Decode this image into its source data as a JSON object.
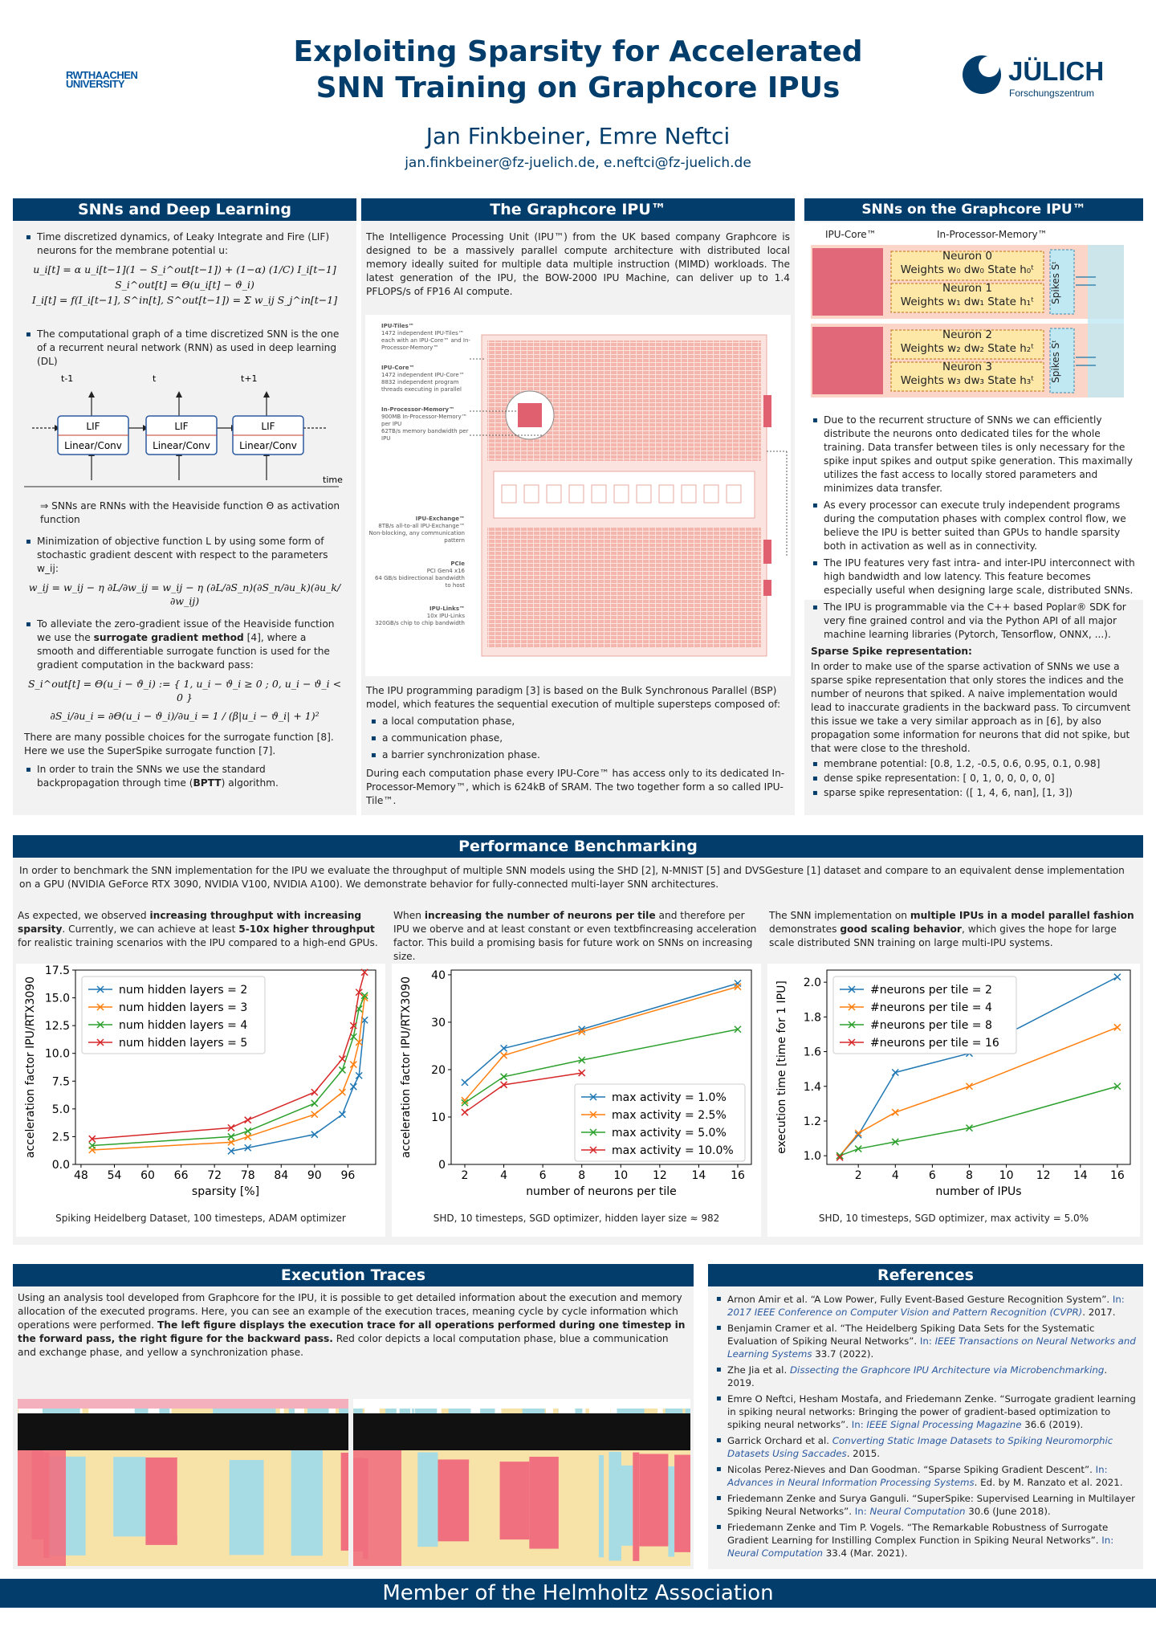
{
  "header": {
    "rwth_logo": "RWTHAACHEN UNIVERSITY",
    "title_line1": "Exploiting Sparsity for Accelerated",
    "title_line2": "SNN Training on Graphcore IPUs",
    "authors": "Jan Finkbeiner, Emre Neftci",
    "emails": "jan.finkbeiner@fz-juelich.de, e.neftci@fz-juelich.de",
    "julich_name": "JÜLICH",
    "julich_sub": "Forschungszentrum"
  },
  "snn_dl": {
    "title": "SNNs and Deep Learning",
    "b1": "Time discretized dynamics, of Leaky Integrate and Fire (LIF) neurons for the membrane potential u:",
    "eq1": "u_i[t] = α u_i[t−1](1 − S_i^out[t−1]) + (1−α) (1/C) I_i[t−1]",
    "eq2": "S_i^out[t] = Θ(u_i[t] − ϑ_i)",
    "eq3": "I_i[t] = f(I_i[t−1], S^in[t], S^out[t−1]) = Σ w_ij S_j^in[t−1]",
    "b2": "The computational graph of a time discretized SNN is the one of a recurrent neural network (RNN) as used in deep learning (DL)",
    "t_labels": [
      "t-1",
      "t",
      "t+1"
    ],
    "lif": "LIF",
    "linear": "Linear/Conv",
    "time": "time",
    "implies": "⇒ SNNs are RNNs with the Heaviside function Θ as activation function",
    "b3": "Minimization of objective function L by using some form of stochastic gradient descent with respect to the parameters w_ij:",
    "eq4": "w_ij = w_ij − η ∂L/∂w_ij = w_ij − η (∂L/∂S_n)(∂S_n/∂u_k)(∂u_k/∂w_ij)",
    "b4a": "To alleviate the zero-gradient issue of the Heaviside function we use the ",
    "b4b": "surrogate gradient method",
    "b4c": " [4], where a smooth and differentiable surrogate function is used for the gradient computation in the backward pass:",
    "eq5": "S_i^out[t] = Θ(u_i − ϑ_i) := { 1, u_i − ϑ_i ≥ 0 ; 0, u_i − ϑ_i < 0 }",
    "eq6": "∂S_i/∂u_i = ∂Θ(u_i − ϑ_i)/∂u_i = 1 / (β|u_i − ϑ_i| + 1)²",
    "p1": "There are many possible choices for the surrogate function [8]. Here we use the SuperSpike surrogate function [7].",
    "b5a": "In order to train the SNNs we use the standard backpropagation through time (",
    "b5b": "BPTT",
    "b5c": ") algorithm."
  },
  "ipu": {
    "title": "The Graphcore IPU™",
    "intro": "The Intelligence Processing Unit (IPU™) from the UK based company Graphcore is designed to be a massively parallel compute architecture with distributed local memory ideally suited for multiple data multiple instruction (MIMD) workloads. The latest generation of the IPU, the BOW-2000 IPU Machine, can deliver up to 1.4 PFLOPS/s of FP16 AI compute.",
    "fig_labels": [
      "IPU-Tiles™",
      "1472 independent IPU-Tiles™ each with an IPU-Core™ and In-Processor-Memory™",
      "IPU-Core™",
      "1472 independent IPU-Core™",
      "8832 independent program threads executing in parallel",
      "In-Processor-Memory™",
      "900MB In-Processor-Memory™ per IPU",
      "62TB/s memory bandwidth per IPU",
      "IPU-Exchange™",
      "8TB/s all-to-all IPU-Exchange™ Non-blocking, any communication pattern",
      "PCIe",
      "PCI Gen4 x16",
      "64 GB/s bidirectional bandwidth to host",
      "IPU-Links™",
      "10x IPU-Links",
      "320GB/s chip to chip bandwidth"
    ],
    "p2": "The IPU programming paradigm [3] is based on the Bulk Synchronous Parallel (BSP) model, which features the sequential execution of multiple supersteps composed of:",
    "steps": [
      "a local computation phase,",
      "a communication phase,",
      "a barrier synchronization phase."
    ],
    "p3": "During each computation phase every IPU-Core™ has access only to its dedicated In-Processor-Memory™, which is 624kB of SRAM. The two together form a so called IPU-Tile™."
  },
  "snn_ipu": {
    "title": "SNNs on the Graphcore IPU™",
    "core_label": "IPU-Core™",
    "mem_label": "In-Processor-Memory™",
    "neurons": [
      {
        "name": "Neuron 0",
        "w": "Weights w₀ dw₀",
        "s": "State h₀ᵗ"
      },
      {
        "name": "Neuron 1",
        "w": "Weights w₁ dw₁",
        "s": "State h₁ᵗ"
      },
      {
        "name": "Neuron 2",
        "w": "Weights w₂ dw₂",
        "s": "State h₂ᵗ"
      },
      {
        "name": "Neuron 3",
        "w": "Weights w₃ dw₃",
        "s": "State h₃ᵗ"
      }
    ],
    "spikes": "Spikes Sᵗ",
    "bullets": [
      "Due to the recurrent structure of SNNs we can efficiently distribute the neurons onto dedicated tiles for the whole training. Data transfer between tiles is only necessary for the spike input spikes and output spike generation. This maximally utilizes the fast access to locally stored parameters and minimizes data transfer.",
      "As every processor can execute truly independent programs during the computation phases with complex control flow, we believe the IPU is better suited than GPUs to handle sparsity both in activation as well as in connectivity.",
      "The IPU features very fast intra- and inter-IPU interconnect with high bandwidth and low latency. This feature becomes especially useful when designing large scale, distributed SNNs.",
      "The IPU is programmable via the C++ based Poplar® SDK for very fine grained control and via the Python API of all major machine learning libraries (Pytorch, Tensorflow, ONNX, ...)."
    ],
    "sparse_title": "Sparse Spike representation:",
    "sparse_text": "In order to make use of the sparse activation of SNNs we use a sparse spike representation that only stores the indices and the number of neurons that spiked. A naive implementation would lead to inaccurate gradients in the backward pass. To circumvent this issue we take a very similar approach as in [6], by also propagation some information for neurons that did not spike, but that were close to the threshold.",
    "examples": [
      "membrane potential: [0.8, 1.2, -0.5, 0.6, 0.95, 0.1, 0.98]",
      "dense spike representation: [ 0, 1, 0, 0, 0, 0, 0]",
      "sparse spike representation: ([ 1, 4, 6, nan], [1, 3])"
    ]
  },
  "perf": {
    "title": "Performance Benchmarking",
    "intro": "In order to benchmark the SNN implementation for the IPU we evaluate the throughput of multiple SNN models using the SHD [2], N-MNIST [5] and DVSGesture [1] dataset and compare to an equivalent dense implementation on a GPU (NVIDIA GeForce RTX 3090, NVIDIA V100, NVIDIA A100). We demonstrate behavior for fully-connected multi-layer SNN architectures.",
    "c1a": "As expected, we observed ",
    "c1b": "increasing throughput with increasing sparsity",
    "c1c": ". Currently, we can achieve at least ",
    "c1d": "5-10x higher throughput",
    "c1e": " for realistic training scenarios with the IPU compared to a high-end GPUs.",
    "c2a": "When ",
    "c2b": "increasing the number of neurons per tile",
    "c2c": " and therefore per IPU we oberve and at least constant or even textbfincreasing acceleration factor. This build a promising basis for future work on SNNs on increasing size.",
    "c3a": "The SNN implementation on ",
    "c3b": "multiple IPUs in a model parallel fashion",
    "c3c": " demonstrates ",
    "c3d": "good scaling behavior",
    "c3e": ", which gives the hope for large scale distributed SNN training on large multi-IPU systems.",
    "cap1": "Spiking Heidelberg Dataset, 100 timesteps, ADAM optimizer",
    "cap2": "SHD, 10 timesteps, SGD optimizer, hidden layer size ≈ 982",
    "cap3": "SHD, 10 timesteps, SGD optimizer, max activity = 5.0%"
  },
  "chart_data": [
    {
      "type": "line",
      "xlabel": "sparsity [%]",
      "ylabel": "acceleration factor IPU/RTX3090",
      "xlim": [
        47,
        101
      ],
      "ylim": [
        0,
        17.5
      ],
      "xticks": [
        48,
        54,
        60,
        66,
        72,
        78,
        84,
        90,
        96
      ],
      "yticks": [
        0.0,
        2.5,
        5.0,
        7.5,
        10.0,
        12.5,
        15.0,
        17.5
      ],
      "legend": "top-left",
      "series": [
        {
          "name": "num hidden layers = 2",
          "color": "#1f77b4",
          "x": [
            75,
            78,
            90,
            95,
            97,
            98,
            99
          ],
          "y": [
            1.2,
            1.5,
            2.7,
            4.5,
            7.0,
            8.0,
            13.0
          ]
        },
        {
          "name": "num hidden layers = 3",
          "color": "#ff7f0e",
          "x": [
            50,
            75,
            78,
            90,
            95,
            97,
            98,
            99
          ],
          "y": [
            1.3,
            2.0,
            2.5,
            4.5,
            6.5,
            9.0,
            11.0,
            15.0
          ]
        },
        {
          "name": "num hidden layers = 4",
          "color": "#2ca02c",
          "x": [
            50,
            75,
            78,
            90,
            95,
            97,
            98,
            99
          ],
          "y": [
            1.7,
            2.5,
            3.0,
            5.5,
            8.5,
            11.5,
            14.0,
            15.2
          ]
        },
        {
          "name": "num hidden layers = 5",
          "color": "#d62728",
          "x": [
            50,
            75,
            78,
            90,
            95,
            97,
            98,
            99
          ],
          "y": [
            2.3,
            3.3,
            4.0,
            6.5,
            9.5,
            12.5,
            15.5,
            17.3
          ]
        }
      ]
    },
    {
      "type": "line",
      "xlabel": "number of neurons per tile",
      "ylabel": "acceleration factor IPU/RTX3090",
      "xlim": [
        1.3,
        16.7
      ],
      "ylim": [
        0,
        41
      ],
      "xticks": [
        2,
        4,
        6,
        8,
        10,
        12,
        14,
        16
      ],
      "yticks": [
        0,
        10,
        20,
        30,
        40
      ],
      "legend": "bottom-right",
      "series": [
        {
          "name": "max activity = 1.0%",
          "color": "#1f77b4",
          "x": [
            2,
            4,
            8,
            16
          ],
          "y": [
            17.3,
            24.5,
            28.5,
            38.2
          ]
        },
        {
          "name": "max activity = 2.5%",
          "color": "#ff7f0e",
          "x": [
            2,
            4,
            8,
            16
          ],
          "y": [
            13.5,
            23.0,
            28.0,
            37.5
          ]
        },
        {
          "name": "max activity = 5.0%",
          "color": "#2ca02c",
          "x": [
            2,
            4,
            8,
            16
          ],
          "y": [
            13.0,
            18.5,
            22.0,
            28.5
          ]
        },
        {
          "name": "max activity = 10.0%",
          "color": "#d62728",
          "x": [
            2,
            4,
            8
          ],
          "y": [
            11.0,
            16.8,
            19.3
          ]
        }
      ]
    },
    {
      "type": "line",
      "xlabel": "number of IPUs",
      "ylabel": "execution time [time for 1 IPU]",
      "xlim": [
        0.3,
        16.7
      ],
      "ylim": [
        0.95,
        2.07
      ],
      "xticks": [
        2,
        4,
        6,
        8,
        10,
        12,
        14,
        16
      ],
      "yticks": [
        1.0,
        1.2,
        1.4,
        1.6,
        1.8,
        2.0
      ],
      "legend": "top-left",
      "series": [
        {
          "name": "#neurons per tile = 2",
          "color": "#1f77b4",
          "x": [
            1,
            2,
            4,
            8,
            16
          ],
          "y": [
            1.0,
            1.12,
            1.48,
            1.59,
            2.03
          ]
        },
        {
          "name": "#neurons per tile = 4",
          "color": "#ff7f0e",
          "x": [
            1,
            2,
            4,
            8,
            16
          ],
          "y": [
            1.0,
            1.13,
            1.25,
            1.4,
            1.74
          ]
        },
        {
          "name": "#neurons per tile = 8",
          "color": "#2ca02c",
          "x": [
            1,
            2,
            4,
            8,
            16
          ],
          "y": [
            1.0,
            1.04,
            1.08,
            1.16,
            1.4
          ]
        },
        {
          "name": "#neurons per tile = 16",
          "color": "#d62728",
          "x": [
            1
          ],
          "y": [
            0.99
          ]
        }
      ]
    }
  ],
  "exec": {
    "title": "Execution Traces",
    "p_a": "Using an analysis tool developed from Graphcore for the IPU, it is possible to get detailed information about the execution and memory allocation of the executed programs. Here, you can see an example of the execution traces, meaning cycle by cycle information which operations were performed. ",
    "p_b": "The left figure displays the execution trace for all operations performed during one timestep in the forward pass, the right figure for the backward pass.",
    "p_c": " Red color depicts a local computation phase, blue a communication and exchange phase, and yellow a synchronization phase.",
    "colors": {
      "compute": "#f07080",
      "exchange": "#a8dce4",
      "sync": "#f7e3a8"
    }
  },
  "refs": {
    "title": "References",
    "items": [
      {
        "a": "Arnon Amir et al. “A Low Power, Fully Event-Based Gesture Recognition System”. ",
        "b": "In: ",
        "c": "2017 IEEE Conference on Computer Vision and Pattern Recognition (CVPR)",
        "d": ". 2017."
      },
      {
        "a": "Benjamin Cramer et al. “The Heidelberg Spiking Data Sets for the Systematic Evaluation of Spiking Neural Networks”. ",
        "b": "In: ",
        "c": "IEEE Transactions on Neural Networks and Learning Systems",
        "d": " 33.7 (2022)."
      },
      {
        "a": "Zhe Jia et al. ",
        "b": "",
        "c": "Dissecting the Graphcore IPU Architecture via Microbenchmarking",
        "d": ". 2019."
      },
      {
        "a": "Emre O Neftci, Hesham Mostafa, and Friedemann Zenke. “Surrogate gradient learning in spiking neural networks: Bringing the power of gradient-based optimization to spiking neural networks”. ",
        "b": "In: ",
        "c": "IEEE Signal Processing Magazine",
        "d": " 36.6 (2019)."
      },
      {
        "a": "Garrick Orchard et al. ",
        "b": "",
        "c": "Converting Static Image Datasets to Spiking Neuromorphic Datasets Using Saccades",
        "d": ". 2015."
      },
      {
        "a": "Nicolas Perez-Nieves and Dan Goodman. “Sparse Spiking Gradient Descent”. ",
        "b": "In: ",
        "c": "Advances in Neural Information Processing Systems",
        "d": ". Ed. by M. Ranzato et al. 2021."
      },
      {
        "a": "Friedemann Zenke and Surya Ganguli. “SuperSpike: Supervised Learning in Multilayer Spiking Neural Networks”. ",
        "b": "In: ",
        "c": "Neural Computation",
        "d": " 30.6 (June 2018)."
      },
      {
        "a": "Friedemann Zenke and Tim P. Vogels. “The Remarkable Robustness of Surrogate Gradient Learning for Instilling Complex Function in Spiking Neural Networks”. ",
        "b": "In: ",
        "c": "Neural Computation",
        "d": " 33.4 (Mar. 2021)."
      }
    ]
  },
  "footer": "Member of the Helmholtz Association"
}
